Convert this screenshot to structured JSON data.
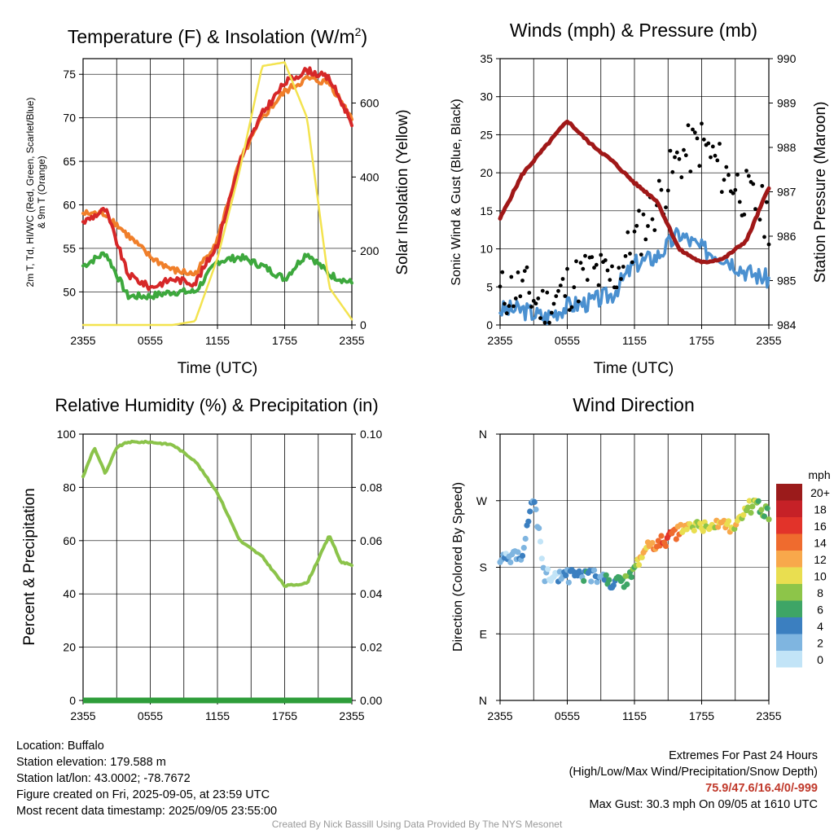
{
  "colors": {
    "temp": "#d62728",
    "heatindex": "#1f77b4",
    "dewpoint": "#3da83d",
    "temp9m": "#f07f2a",
    "solar": "#f3e34f",
    "wind": "#4a90d0",
    "gust": "#000000",
    "pressure": "#a01818",
    "humidity": "#8bc34a",
    "precip": "#2e9d3a"
  },
  "info": {
    "location": "Location: Buffalo",
    "elevation": "Station elevation: 179.588 m",
    "latlon": "Station lat/lon: 43.0002; -78.7672",
    "created": "Figure created on Fri, 2025-09-05, at 23:59 UTC",
    "recent": "Most recent data timestamp: 2025/09/05 23:55:00"
  },
  "extremes": {
    "title": "Extremes For Past 24 Hours",
    "legend": "(High/Low/Max Wind/Precipitation/Snow Depth)",
    "values": "75.9/47.6/16.4/0/-999",
    "max_gust": "Max Gust: 30.3 mph On 09/05 at 1610 UTC"
  },
  "credit": "Created By Nick Bassill Using Data Provided By The NYS Mesonet",
  "chart_data": [
    {
      "type": "line",
      "title": "Temperature (F) & Insolation (W/m²)",
      "xlabel": "Time (UTC)",
      "ylabel": "2m T, Td, HI/WC (Red, Green, Scarlet/Blue) & 9m T (Orange)",
      "ylabel_right": "Solar Insolation (Yellow)",
      "x_ticks": [
        "2355",
        "0555",
        "1155",
        "1755",
        "2355"
      ],
      "y_ticks": [
        50,
        55,
        60,
        65,
        70,
        75
      ],
      "y_ticks_right": [
        0,
        200,
        400,
        600
      ],
      "ylim": [
        46.2,
        76.8
      ],
      "ylim_right": [
        0,
        720
      ],
      "x_hours": [
        0,
        2,
        4,
        6,
        8,
        10,
        12,
        14,
        16,
        18,
        20,
        22,
        24
      ],
      "series": [
        {
          "key": "dewpoint",
          "axis": "left",
          "values": [
            53,
            54.5,
            49.5,
            49.5,
            50,
            50,
            53.5,
            54,
            53,
            51.5,
            54.5,
            52,
            51
          ]
        },
        {
          "key": "temp9m",
          "axis": "left",
          "values": [
            59,
            59,
            56.5,
            54,
            52.5,
            52,
            56,
            65,
            70,
            73,
            74.5,
            74,
            70
          ]
        },
        {
          "key": "temp",
          "axis": "left",
          "values": [
            58,
            59.5,
            52,
            50.5,
            51.5,
            51,
            55.5,
            65,
            70.5,
            74,
            75.5,
            74.5,
            69.5
          ]
        },
        {
          "key": "solar",
          "axis": "right",
          "values": [
            0,
            0,
            0,
            0,
            0,
            10,
            180,
            420,
            700,
            710,
            560,
            100,
            15
          ]
        }
      ]
    },
    {
      "type": "line",
      "title": "Winds (mph) & Pressure (mb)",
      "xlabel": "Time (UTC)",
      "ylabel": "Sonic Wind & Gust (Blue, Black)",
      "ylabel_right": "Station Pressure (Maroon)",
      "x_ticks": [
        "2355",
        "0555",
        "1155",
        "1755",
        "2355"
      ],
      "y_ticks": [
        0,
        5,
        10,
        15,
        20,
        25,
        30,
        35
      ],
      "y_ticks_right": [
        984,
        985,
        986,
        987,
        988,
        989,
        990
      ],
      "ylim": [
        0,
        35
      ],
      "ylim_right": [
        984,
        990
      ],
      "x_hours": [
        0,
        2,
        4,
        6,
        8,
        10,
        12,
        14,
        16,
        18,
        20,
        22,
        24
      ],
      "series": [
        {
          "key": "wind",
          "axis": "left",
          "values": [
            2,
            2,
            1,
            2.5,
            3,
            4,
            8,
            9,
            12,
            10,
            9,
            7,
            6
          ]
        },
        {
          "key": "gust",
          "axis": "left",
          "values": [
            4,
            5,
            2,
            5,
            7,
            6,
            11,
            16,
            22,
            24,
            20,
            17,
            14
          ]
        },
        {
          "key": "pressure",
          "axis": "right",
          "values": [
            986.4,
            987.4,
            988,
            988.6,
            988.1,
            987.7,
            987.2,
            986.8,
            985.7,
            985.4,
            985.5,
            985.9,
            987.1
          ]
        }
      ]
    },
    {
      "type": "line",
      "title": "Relative Humidity (%) & Precipitation (in)",
      "ylabel": "Percent & Precipitation",
      "x_ticks": [
        "2355",
        "0555",
        "1155",
        "1755",
        "2355"
      ],
      "y_ticks": [
        0,
        20,
        40,
        60,
        80,
        100
      ],
      "y_ticks_right": [
        "0.00",
        "0.02",
        "0.04",
        "0.06",
        "0.08",
        "0.10"
      ],
      "ylim": [
        0,
        100
      ],
      "ylim_right": [
        0,
        0.1
      ],
      "x_hours": [
        0,
        1,
        2,
        3,
        4,
        6,
        8,
        10,
        12,
        14,
        16,
        18,
        20,
        22,
        23,
        24
      ],
      "series": [
        {
          "key": "humidity",
          "axis": "left",
          "values": [
            84,
            95,
            85,
            95,
            97,
            97,
            96,
            90,
            78,
            60,
            54,
            43,
            44,
            62,
            52,
            51
          ]
        },
        {
          "key": "precip",
          "axis": "right",
          "values": [
            0,
            0,
            0,
            0,
            0,
            0,
            0,
            0,
            0,
            0,
            0,
            0,
            0,
            0,
            0,
            0
          ]
        }
      ]
    },
    {
      "type": "scatter",
      "title": "Wind Direction",
      "ylabel": "Direction (Colored By Speed)",
      "x_ticks": [
        "2355",
        "0555",
        "1155",
        "1755",
        "2355"
      ],
      "y_ticks": [
        "N",
        "E",
        "S",
        "W",
        "N"
      ],
      "ylim": [
        0,
        360
      ],
      "legend_title": "mph",
      "legend_labels": [
        "20+",
        "18",
        "16",
        "14",
        "12",
        "10",
        "8",
        "6",
        "4",
        "2",
        "0"
      ],
      "legend_colors": [
        "#9b1b1b",
        "#c62127",
        "#e2332a",
        "#ef6b2e",
        "#f8a84b",
        "#e9de50",
        "#8dc549",
        "#3ea566",
        "#3b7fc0",
        "#7fb5e0",
        "#c2e4f7"
      ],
      "points_hours": [
        0,
        1,
        2,
        3,
        4,
        5,
        6,
        7,
        8,
        9,
        10,
        11,
        12,
        13,
        14,
        15,
        16,
        17,
        18,
        19,
        20,
        21,
        22,
        23,
        24
      ],
      "points_dir": [
        195,
        190,
        200,
        275,
        170,
        170,
        168,
        170,
        170,
        165,
        158,
        160,
        175,
        205,
        212,
        218,
        228,
        235,
        232,
        238,
        240,
        230,
        260,
        265,
        250
      ],
      "points_speed": [
        2,
        2,
        3,
        3,
        1,
        2,
        3,
        4,
        4,
        3,
        5,
        6,
        8,
        12,
        14,
        15,
        13,
        10,
        9,
        10,
        11,
        10,
        9,
        8,
        7
      ]
    }
  ]
}
